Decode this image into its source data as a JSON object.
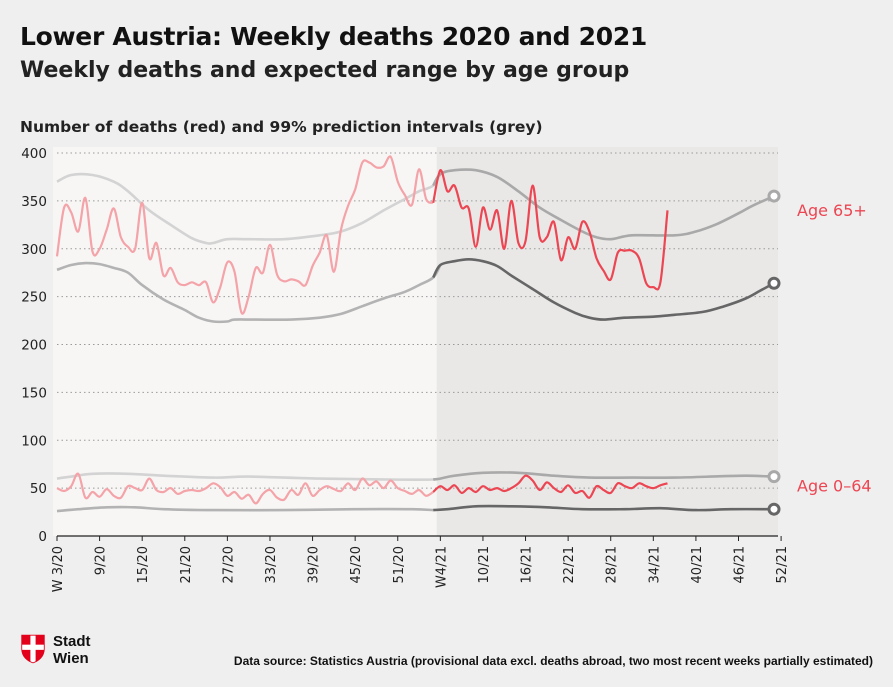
{
  "header": {
    "title": "Lower Austria: Weekly deaths 2020 and 2021",
    "subtitle": "Weekly deaths and expected range by age group"
  },
  "footer": {
    "logo_line1": "Stadt",
    "logo_line2": "Wien",
    "source": "Data source: Statistics Austria (provisional data excl. deaths abroad, two most recent weeks partially estimated)"
  },
  "colors": {
    "deaths_2020": "#f4a3a8",
    "deaths_2021": "#ec4653",
    "pi_upper_2020": "#d3d3d3",
    "pi_lower_2020": "#b3b3b3",
    "pi_upper_2021": "#a9a9a9",
    "pi_lower_2021": "#666666",
    "label": "#ec4653"
  },
  "chart_data": {
    "type": "line",
    "title": "Number of deaths (red) and 99% prediction intervals (grey)",
    "ylim": [
      0,
      400
    ],
    "yticks": [
      0,
      50,
      100,
      150,
      200,
      250,
      300,
      350,
      400
    ],
    "xlim": [
      3,
      104
    ],
    "xtick_positions": [
      3,
      9,
      15,
      21,
      27,
      33,
      39,
      45,
      51,
      57,
      63,
      69,
      75,
      81,
      87,
      93,
      99,
      105
    ],
    "xtick_labels": [
      "W 3/20",
      "9/20",
      "15/20",
      "21/20",
      "27/20",
      "33/20",
      "39/20",
      "45/20",
      "51/20",
      "W4/21",
      "10/21",
      "16/21",
      "22/21",
      "28/21",
      "34/21",
      "40/21",
      "46/21",
      "52/21"
    ],
    "grid": "horizontal-dotted",
    "shaded_period": [
      56.5,
      104
    ],
    "groups": [
      {
        "label": "Age 65+",
        "upper": [
          [
            3,
            370
          ],
          [
            5,
            377
          ],
          [
            8,
            377
          ],
          [
            11,
            370
          ],
          [
            13,
            360
          ],
          [
            16,
            340
          ],
          [
            19,
            325
          ],
          [
            22,
            311
          ],
          [
            24,
            306
          ],
          [
            25,
            306
          ],
          [
            27,
            310
          ],
          [
            30,
            310
          ],
          [
            35,
            310
          ],
          [
            40,
            314
          ],
          [
            43,
            318
          ],
          [
            46,
            327
          ],
          [
            49,
            340
          ],
          [
            52,
            352
          ],
          [
            53,
            356
          ],
          [
            54,
            360
          ],
          [
            56,
            366
          ],
          [
            57,
            378
          ],
          [
            59,
            382
          ],
          [
            62,
            382
          ],
          [
            65,
            375
          ],
          [
            68,
            360
          ],
          [
            71,
            343
          ],
          [
            74,
            330
          ],
          [
            77,
            318
          ],
          [
            79,
            312
          ],
          [
            81,
            310
          ],
          [
            84,
            314
          ],
          [
            90,
            314
          ],
          [
            93,
            318
          ],
          [
            96,
            326
          ],
          [
            99,
            337
          ],
          [
            101,
            345
          ],
          [
            104,
            355
          ]
        ],
        "lower": [
          [
            3,
            278
          ],
          [
            5,
            283
          ],
          [
            7,
            285
          ],
          [
            9,
            284
          ],
          [
            11,
            280
          ],
          [
            13,
            275
          ],
          [
            15,
            262
          ],
          [
            18,
            247
          ],
          [
            21,
            236
          ],
          [
            23,
            228
          ],
          [
            25,
            224
          ],
          [
            27,
            224
          ],
          [
            28,
            226
          ],
          [
            31,
            226
          ],
          [
            36,
            226
          ],
          [
            40,
            228
          ],
          [
            43,
            232
          ],
          [
            46,
            240
          ],
          [
            49,
            248
          ],
          [
            52,
            255
          ],
          [
            54,
            262
          ],
          [
            56,
            270
          ],
          [
            57,
            283
          ],
          [
            59,
            287
          ],
          [
            61,
            289
          ],
          [
            63,
            287
          ],
          [
            65,
            282
          ],
          [
            67,
            272
          ],
          [
            70,
            258
          ],
          [
            73,
            244
          ],
          [
            76,
            233
          ],
          [
            78,
            228
          ],
          [
            80,
            226
          ],
          [
            83,
            228
          ],
          [
            87,
            229
          ],
          [
            90,
            231
          ],
          [
            94,
            234
          ],
          [
            97,
            240
          ],
          [
            100,
            248
          ],
          [
            102,
            256
          ],
          [
            104,
            264
          ]
        ],
        "deaths_2020": [
          [
            3,
            292
          ],
          [
            4,
            343
          ],
          [
            5,
            338
          ],
          [
            6,
            318
          ],
          [
            7,
            353
          ],
          [
            8,
            297
          ],
          [
            9,
            300
          ],
          [
            10,
            320
          ],
          [
            11,
            342
          ],
          [
            12,
            312
          ],
          [
            13,
            302
          ],
          [
            14,
            300
          ],
          [
            15,
            348
          ],
          [
            16,
            290
          ],
          [
            17,
            306
          ],
          [
            18,
            272
          ],
          [
            19,
            280
          ],
          [
            20,
            265
          ],
          [
            21,
            262
          ],
          [
            22,
            265
          ],
          [
            23,
            262
          ],
          [
            24,
            265
          ],
          [
            25,
            244
          ],
          [
            26,
            260
          ],
          [
            27,
            286
          ],
          [
            28,
            276
          ],
          [
            29,
            233
          ],
          [
            30,
            250
          ],
          [
            31,
            280
          ],
          [
            32,
            275
          ],
          [
            33,
            304
          ],
          [
            34,
            273
          ],
          [
            35,
            266
          ],
          [
            36,
            268
          ],
          [
            37,
            266
          ],
          [
            38,
            262
          ],
          [
            39,
            282
          ],
          [
            40,
            296
          ],
          [
            41,
            314
          ],
          [
            42,
            276
          ],
          [
            43,
            320
          ],
          [
            44,
            345
          ],
          [
            45,
            362
          ],
          [
            46,
            390
          ],
          [
            47,
            390
          ],
          [
            48,
            385
          ],
          [
            49,
            386
          ],
          [
            50,
            396
          ],
          [
            51,
            370
          ],
          [
            52,
            356
          ],
          [
            53,
            346
          ],
          [
            54,
            383
          ],
          [
            55,
            352
          ],
          [
            56,
            348
          ]
        ],
        "deaths_2021": [
          [
            56,
            348
          ],
          [
            57,
            382
          ],
          [
            58,
            360
          ],
          [
            59,
            366
          ],
          [
            60,
            343
          ],
          [
            61,
            342
          ],
          [
            62,
            302
          ],
          [
            63,
            343
          ],
          [
            64,
            320
          ],
          [
            65,
            340
          ],
          [
            66,
            300
          ],
          [
            67,
            350
          ],
          [
            68,
            306
          ],
          [
            69,
            308
          ],
          [
            70,
            366
          ],
          [
            71,
            312
          ],
          [
            72,
            312
          ],
          [
            73,
            328
          ],
          [
            74,
            288
          ],
          [
            75,
            312
          ],
          [
            76,
            300
          ],
          [
            77,
            328
          ],
          [
            78,
            318
          ],
          [
            79,
            290
          ],
          [
            80,
            277
          ],
          [
            81,
            268
          ],
          [
            82,
            296
          ],
          [
            83,
            298
          ],
          [
            84,
            298
          ],
          [
            85,
            290
          ],
          [
            86,
            264
          ],
          [
            87,
            260
          ],
          [
            88,
            265
          ],
          [
            89,
            340
          ]
        ]
      },
      {
        "label": "Age 0–64",
        "upper": [
          [
            3,
            60
          ],
          [
            5,
            62
          ],
          [
            8,
            65
          ],
          [
            13,
            65
          ],
          [
            18,
            63
          ],
          [
            25,
            61
          ],
          [
            30,
            62
          ],
          [
            40,
            60
          ],
          [
            50,
            59
          ],
          [
            56,
            59
          ],
          [
            57,
            60
          ],
          [
            59,
            63
          ],
          [
            63,
            66
          ],
          [
            68,
            66
          ],
          [
            73,
            63
          ],
          [
            78,
            61
          ],
          [
            84,
            61
          ],
          [
            90,
            61
          ],
          [
            95,
            62
          ],
          [
            100,
            63
          ],
          [
            104,
            62
          ]
        ],
        "lower": [
          [
            3,
            26
          ],
          [
            6,
            28
          ],
          [
            10,
            30
          ],
          [
            14,
            30
          ],
          [
            18,
            28
          ],
          [
            25,
            27
          ],
          [
            35,
            27
          ],
          [
            45,
            28
          ],
          [
            53,
            28
          ],
          [
            56,
            27
          ],
          [
            58,
            28
          ],
          [
            62,
            31
          ],
          [
            67,
            31
          ],
          [
            72,
            30
          ],
          [
            77,
            28
          ],
          [
            83,
            28
          ],
          [
            88,
            29
          ],
          [
            93,
            27
          ],
          [
            98,
            28
          ],
          [
            104,
            28
          ]
        ],
        "deaths_2020": [
          [
            3,
            50
          ],
          [
            4,
            47
          ],
          [
            5,
            52
          ],
          [
            6,
            65
          ],
          [
            7,
            40
          ],
          [
            8,
            46
          ],
          [
            9,
            41
          ],
          [
            10,
            49
          ],
          [
            11,
            42
          ],
          [
            12,
            40
          ],
          [
            13,
            52
          ],
          [
            14,
            50
          ],
          [
            15,
            48
          ],
          [
            16,
            60
          ],
          [
            17,
            48
          ],
          [
            18,
            46
          ],
          [
            19,
            50
          ],
          [
            20,
            44
          ],
          [
            21,
            47
          ],
          [
            22,
            48
          ],
          [
            23,
            47
          ],
          [
            24,
            50
          ],
          [
            25,
            55
          ],
          [
            26,
            51
          ],
          [
            27,
            42
          ],
          [
            28,
            46
          ],
          [
            29,
            39
          ],
          [
            30,
            43
          ],
          [
            31,
            34
          ],
          [
            32,
            44
          ],
          [
            33,
            48
          ],
          [
            34,
            40
          ],
          [
            35,
            38
          ],
          [
            36,
            48
          ],
          [
            37,
            43
          ],
          [
            38,
            55
          ],
          [
            39,
            42
          ],
          [
            40,
            48
          ],
          [
            41,
            52
          ],
          [
            42,
            49
          ],
          [
            43,
            47
          ],
          [
            44,
            55
          ],
          [
            45,
            48
          ],
          [
            46,
            60
          ],
          [
            47,
            53
          ],
          [
            48,
            57
          ],
          [
            49,
            50
          ],
          [
            50,
            58
          ],
          [
            51,
            50
          ],
          [
            52,
            47
          ],
          [
            53,
            44
          ],
          [
            54,
            48
          ],
          [
            55,
            42
          ],
          [
            56,
            46
          ]
        ],
        "deaths_2021": [
          [
            56,
            46
          ],
          [
            57,
            52
          ],
          [
            58,
            48
          ],
          [
            59,
            53
          ],
          [
            60,
            45
          ],
          [
            61,
            50
          ],
          [
            62,
            46
          ],
          [
            63,
            52
          ],
          [
            64,
            48
          ],
          [
            65,
            50
          ],
          [
            66,
            47
          ],
          [
            67,
            50
          ],
          [
            68,
            55
          ],
          [
            69,
            63
          ],
          [
            70,
            58
          ],
          [
            71,
            48
          ],
          [
            72,
            56
          ],
          [
            73,
            50
          ],
          [
            74,
            46
          ],
          [
            75,
            53
          ],
          [
            76,
            45
          ],
          [
            77,
            47
          ],
          [
            78,
            40
          ],
          [
            79,
            52
          ],
          [
            80,
            48
          ],
          [
            81,
            45
          ],
          [
            82,
            55
          ],
          [
            83,
            52
          ],
          [
            84,
            50
          ],
          [
            85,
            55
          ],
          [
            86,
            52
          ],
          [
            87,
            50
          ],
          [
            88,
            53
          ],
          [
            89,
            55
          ]
        ]
      }
    ]
  }
}
